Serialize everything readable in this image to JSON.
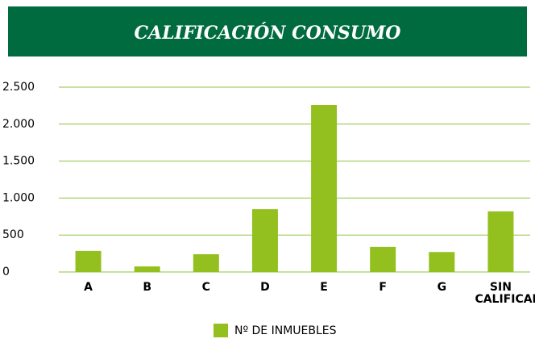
{
  "chart_data": {
    "type": "bar",
    "title": "CALIFICACIÓN CONSUMO",
    "categories": [
      "A",
      "B",
      "C",
      "D",
      "E",
      "F",
      "G",
      "SIN CALIFICAR"
    ],
    "series": [
      {
        "name": "Nº DE INMUEBLES",
        "color": "#93c01f",
        "values": [
          285,
          75,
          240,
          850,
          2260,
          340,
          270,
          820
        ]
      }
    ],
    "ylim": [
      0,
      2500
    ],
    "yticks": [
      0,
      500,
      {
        "value": 1000,
        "label": "1.000"
      },
      {
        "value": 1500,
        "label": "1.500"
      },
      {
        "value": 2000,
        "label": "2.000"
      },
      {
        "value": 2500,
        "label": "2.500"
      }
    ],
    "grid": true,
    "grid_color": "#8dc63f",
    "title_background": "#006b3f",
    "legend": "bottom"
  }
}
